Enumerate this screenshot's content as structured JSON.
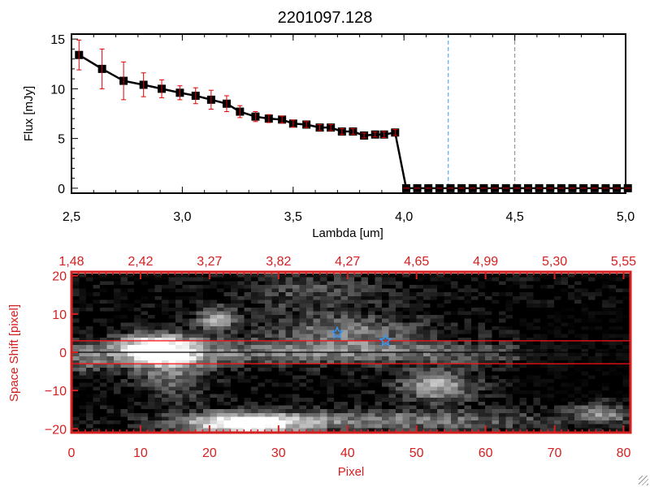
{
  "colors": {
    "error_bar": "#e00000",
    "marker": "#000000",
    "line_blue": "#3399ff",
    "line_gray": "#888888",
    "axis_red": "#d42020",
    "star": "#3399ff"
  },
  "chart_data": [
    {
      "type": "line",
      "title": "2201097.128",
      "xlabel": "Lambda [um]",
      "ylabel": "Flux [mJy]",
      "xlim": [
        2.5,
        5.0
      ],
      "ylim": [
        -0.5,
        15.5
      ],
      "xticks": [
        "2.5",
        "3.0",
        "3.5",
        "4.0",
        "4.5",
        "5.0"
      ],
      "yticks": [
        "0",
        "5",
        "10",
        "15"
      ],
      "x": [
        2.534,
        2.638,
        2.735,
        2.825,
        2.907,
        2.989,
        3.06,
        3.13,
        3.2,
        3.26,
        3.33,
        3.39,
        3.45,
        3.5,
        3.56,
        3.62,
        3.67,
        3.72,
        3.77,
        3.82,
        3.87,
        3.91,
        3.96,
        4.01,
        4.06,
        4.11,
        4.16,
        4.21,
        4.26,
        4.31,
        4.36,
        4.41,
        4.46,
        4.51,
        4.56,
        4.61,
        4.66,
        4.71,
        4.76,
        4.81,
        4.86,
        4.91,
        4.96,
        5.01
      ],
      "y": [
        13.4,
        12.0,
        10.8,
        10.4,
        10.0,
        9.6,
        9.3,
        8.9,
        8.5,
        7.7,
        7.2,
        7.0,
        6.9,
        6.5,
        6.4,
        6.1,
        6.1,
        5.7,
        5.7,
        5.3,
        5.4,
        5.4,
        5.6,
        0,
        0,
        0,
        0,
        0,
        0,
        0,
        0,
        0,
        0,
        0,
        0,
        0,
        0,
        0,
        0,
        0,
        0,
        0,
        0,
        0
      ],
      "yerr": [
        1.5,
        2.0,
        1.9,
        1.2,
        0.9,
        0.7,
        0.8,
        0.95,
        0.8,
        0.6,
        0.5,
        0.4,
        0.35,
        0.35,
        0.3,
        0.3,
        0.3,
        0.3,
        0.3,
        0.25,
        0.25,
        0.3,
        0.3,
        0,
        0,
        0,
        0,
        0,
        0,
        0,
        0,
        0,
        0,
        0,
        0,
        0,
        0,
        0,
        0,
        0,
        0,
        0,
        0,
        0
      ],
      "vlines": [
        {
          "x": 4.2,
          "color": "blue",
          "style": "dashed"
        },
        {
          "x": 4.5,
          "color": "gray",
          "style": "dashed"
        }
      ]
    },
    {
      "type": "heatmap",
      "xlabel": "Pixel",
      "ylabel": "Space Shift [pixel]",
      "xlim": [
        0,
        81
      ],
      "ylim": [
        -21,
        21
      ],
      "xticks": [
        "0",
        "10",
        "20",
        "30",
        "40",
        "50",
        "60",
        "70",
        "80"
      ],
      "yticks": [
        "-20",
        "-10",
        "0",
        "10",
        "20"
      ],
      "top_xticks": [
        "1.48",
        "2.42",
        "3.27",
        "3.82",
        "4.27",
        "4.65",
        "4.99",
        "5.30",
        "5.55"
      ],
      "hlines": [
        {
          "y": 3,
          "color": "red"
        },
        {
          "y": -3,
          "color": "red"
        },
        {
          "y": 0,
          "color": "black"
        }
      ],
      "stars": [
        {
          "x": 38.5,
          "y": 5
        },
        {
          "x": 45.5,
          "y": 3
        }
      ],
      "blobs": [
        {
          "x": 12,
          "y": 1,
          "sx": 4,
          "sy": 3,
          "a": 1.0
        },
        {
          "x": 35,
          "y": 0,
          "sx": 25,
          "sy": 2.5,
          "a": 0.5
        },
        {
          "x": 21,
          "y": 9,
          "sx": 2,
          "sy": 2,
          "a": 0.7
        },
        {
          "x": 40,
          "y": 6,
          "sx": 8,
          "sy": 3,
          "a": 0.45
        },
        {
          "x": 53,
          "y": -9,
          "sx": 4,
          "sy": 3,
          "a": 0.7
        },
        {
          "x": 25,
          "y": -19,
          "sx": 6,
          "sy": 2,
          "a": 1.0
        },
        {
          "x": 45,
          "y": -18,
          "sx": 20,
          "sy": 2,
          "a": 0.5
        },
        {
          "x": 77,
          "y": -16,
          "sx": 3,
          "sy": 2,
          "a": 0.5
        },
        {
          "x": 15,
          "y": -6,
          "sx": 4,
          "sy": 5,
          "a": 0.4
        },
        {
          "x": 35,
          "y": 16,
          "sx": 8,
          "sy": 4,
          "a": 0.3
        },
        {
          "x": 2,
          "y": -2,
          "sx": 2,
          "sy": 3,
          "a": 0.35
        }
      ]
    }
  ]
}
